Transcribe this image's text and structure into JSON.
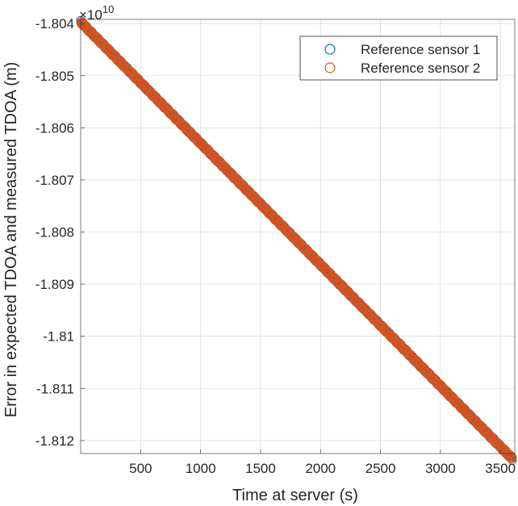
{
  "chart_data": {
    "type": "scatter",
    "xlabel": "Time at server (s)",
    "ylabel": "Error in expected TDOA and measured TDOA (m)",
    "exponent_label": "×10",
    "exponent_power": "10",
    "xlim": [
      0,
      3620
    ],
    "ylim": [
      -1.81225,
      -1.80392
    ],
    "xticks": [
      500,
      1000,
      1500,
      2000,
      2500,
      3000,
      3500
    ],
    "xtick_labels": [
      "500",
      "1000",
      "1500",
      "2000",
      "2500",
      "3000",
      "3500"
    ],
    "yticks": [
      -1.804,
      -1.805,
      -1.806,
      -1.807,
      -1.808,
      -1.809,
      -1.81,
      -1.811,
      -1.812
    ],
    "ytick_labels": [
      "-1.804",
      "-1.805",
      "-1.806",
      "-1.807",
      "-1.808",
      "-1.809",
      "-1.81",
      "-1.811",
      "-1.812"
    ],
    "grid": true,
    "legend_position": "top-right",
    "series": [
      {
        "name": "Reference sensor 1",
        "color": "#0072BD",
        "marker": "circle-open",
        "x_range": [
          0,
          3600
        ],
        "y_range": [
          -1.80397,
          -1.81235
        ]
      },
      {
        "name": "Reference sensor 2",
        "color": "#D95319",
        "marker": "circle-open",
        "x_range": [
          0,
          3600
        ],
        "y_range": [
          -1.80397,
          -1.81235
        ]
      }
    ]
  }
}
